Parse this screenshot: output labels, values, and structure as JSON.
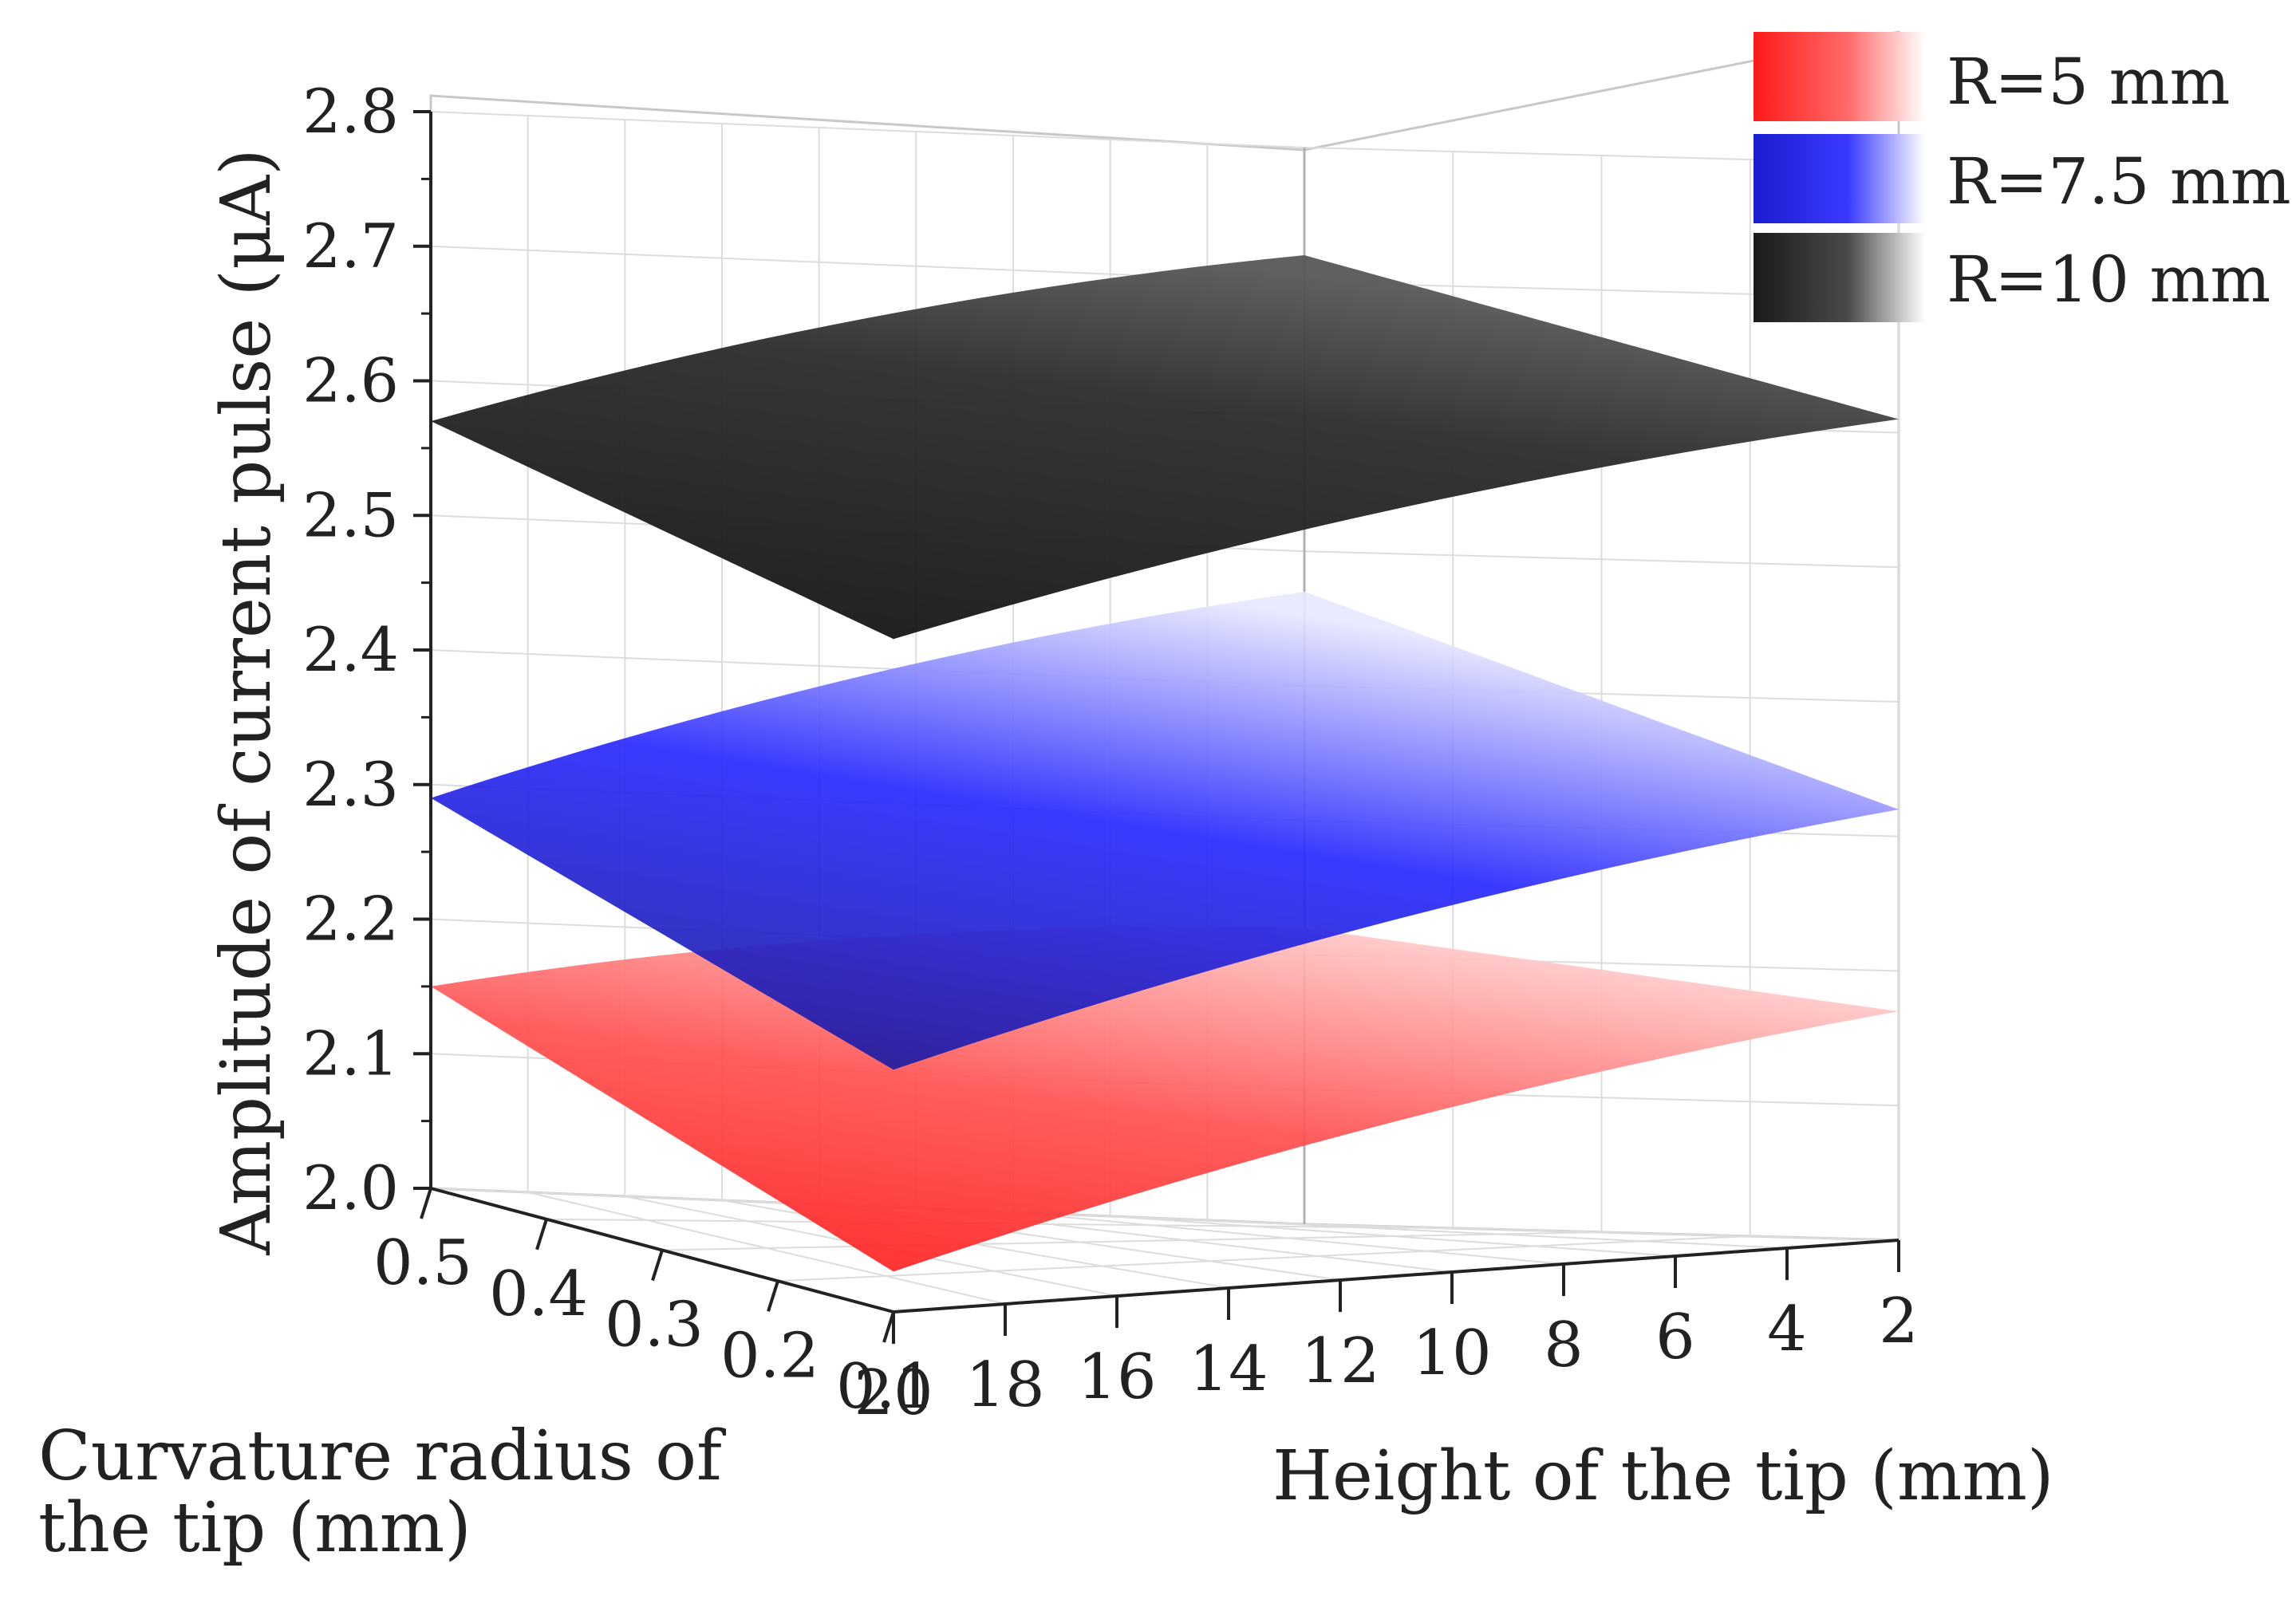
{
  "chart_data": {
    "type": "surface3d",
    "title": "",
    "zlabel": "Amplitude of current pulse (μA)",
    "ylabel": "Curvature radius of the tip (mm)",
    "ylabel_lines": [
      "Curvature radius of",
      "the tip (mm)"
    ],
    "xlabel": "Height of the tip (mm)",
    "zlim": [
      2.0,
      2.8
    ],
    "z_ticks": [
      "2.0",
      "2.1",
      "2.2",
      "2.3",
      "2.4",
      "2.5",
      "2.6",
      "2.7",
      "2.8"
    ],
    "x_ticks": [
      "20",
      "18",
      "16",
      "14",
      "12",
      "10",
      "8",
      "6",
      "4",
      "2"
    ],
    "y_ticks": [
      "0.5",
      "0.4",
      "0.3",
      "0.2",
      "0.1"
    ],
    "legend_position": "top-right",
    "grid": true,
    "series": [
      {
        "name": "R=5 mm",
        "color": "#ff2a2a",
        "corner_values": {
          "h20_r0.1": 2.03,
          "h2_r0.1": 2.17,
          "h20_r0.5": 2.15,
          "h2_r0.5": 2.22
        }
      },
      {
        "name": "R=7.5 mm",
        "color": "#2323e8",
        "corner_values": {
          "h20_r0.1": 2.18,
          "h2_r0.1": 2.32,
          "h20_r0.5": 2.29,
          "h2_r0.5": 2.47
        }
      },
      {
        "name": "R=10 mm",
        "color": "#2b2b2b",
        "corner_values": {
          "h20_r0.1": 2.5,
          "h2_r0.1": 2.61,
          "h20_r0.5": 2.57,
          "h2_r0.5": 2.72
        }
      }
    ]
  }
}
